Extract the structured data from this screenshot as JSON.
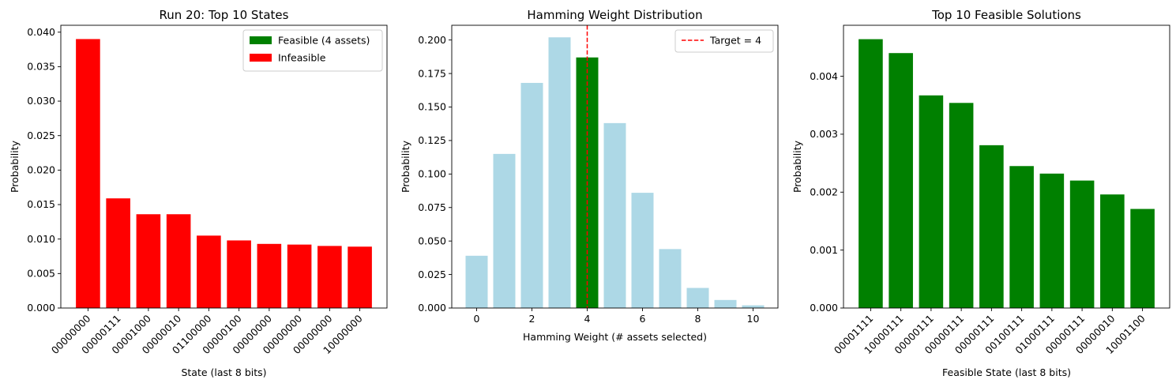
{
  "chart_data": [
    {
      "type": "bar",
      "title": "Run 20: Top 10 States",
      "xlabel": "State (last 8 bits)",
      "ylabel": "Probability",
      "ylim": [
        0,
        0.041
      ],
      "yticks": [
        0.0,
        0.005,
        0.01,
        0.015,
        0.02,
        0.025,
        0.03,
        0.035,
        0.04
      ],
      "ytick_labels": [
        "0.000",
        "0.005",
        "0.010",
        "0.015",
        "0.020",
        "0.025",
        "0.030",
        "0.035",
        "0.040"
      ],
      "categories": [
        "00000000",
        "00000111",
        "00001000",
        "00000010",
        "01100000",
        "00000100",
        "00000000",
        "00000000",
        "00000000",
        "10000000"
      ],
      "values": [
        0.039,
        0.0159,
        0.0136,
        0.0136,
        0.0105,
        0.0098,
        0.0093,
        0.0092,
        0.009,
        0.0089
      ],
      "colors": [
        "#ff0000",
        "#ff0000",
        "#ff0000",
        "#ff0000",
        "#ff0000",
        "#ff0000",
        "#ff0000",
        "#ff0000",
        "#ff0000",
        "#ff0000"
      ],
      "grid": false,
      "legend_placement": "top-right",
      "legend": [
        {
          "label": "Feasible (4 assets)",
          "color": "#008000",
          "kind": "patch"
        },
        {
          "label": "Infeasible",
          "color": "#ff0000",
          "kind": "patch"
        }
      ]
    },
    {
      "type": "bar",
      "title": "Hamming Weight Distribution",
      "xlabel": "Hamming Weight (# assets selected)",
      "ylabel": "Probability",
      "xlim": [
        -0.9,
        10.9
      ],
      "ylim": [
        0,
        0.211
      ],
      "xticks": [
        0,
        2,
        4,
        6,
        8,
        10
      ],
      "xtick_labels": [
        "0",
        "2",
        "4",
        "6",
        "8",
        "10"
      ],
      "yticks": [
        0.0,
        0.025,
        0.05,
        0.075,
        0.1,
        0.125,
        0.15,
        0.175,
        0.2
      ],
      "ytick_labels": [
        "0.000",
        "0.025",
        "0.050",
        "0.075",
        "0.100",
        "0.125",
        "0.150",
        "0.175",
        "0.200"
      ],
      "x": [
        0,
        1,
        2,
        3,
        4,
        5,
        6,
        7,
        8,
        9,
        10
      ],
      "values": [
        0.039,
        0.115,
        0.168,
        0.202,
        0.187,
        0.138,
        0.086,
        0.044,
        0.015,
        0.006,
        0.002
      ],
      "colors": [
        "#add8e6",
        "#add8e6",
        "#add8e6",
        "#add8e6",
        "#008000",
        "#add8e6",
        "#add8e6",
        "#add8e6",
        "#add8e6",
        "#add8e6",
        "#add8e6"
      ],
      "target_line": {
        "x": 4,
        "color": "#ff0000",
        "style": "dashed"
      },
      "grid": false,
      "legend_placement": "top-right",
      "legend": [
        {
          "label": "Target = 4",
          "color": "#ff0000",
          "kind": "dashed-line"
        }
      ]
    },
    {
      "type": "bar",
      "title": "Top 10 Feasible Solutions",
      "xlabel": "Feasible State (last 8 bits)",
      "ylabel": "Probability",
      "ylim": [
        0,
        0.00488
      ],
      "yticks": [
        0.0,
        0.001,
        0.002,
        0.003,
        0.004
      ],
      "ytick_labels": [
        "0.000",
        "0.001",
        "0.002",
        "0.003",
        "0.004"
      ],
      "categories": [
        "00001111",
        "10000111",
        "00000111",
        "00000111",
        "00000111",
        "00100111",
        "01000111",
        "00000111",
        "00000010",
        "10001100"
      ],
      "values": [
        0.00464,
        0.0044,
        0.00367,
        0.00354,
        0.00281,
        0.00245,
        0.00232,
        0.0022,
        0.00196,
        0.00171
      ],
      "colors": [
        "#008000",
        "#008000",
        "#008000",
        "#008000",
        "#008000",
        "#008000",
        "#008000",
        "#008000",
        "#008000",
        "#008000"
      ],
      "grid": false
    }
  ]
}
